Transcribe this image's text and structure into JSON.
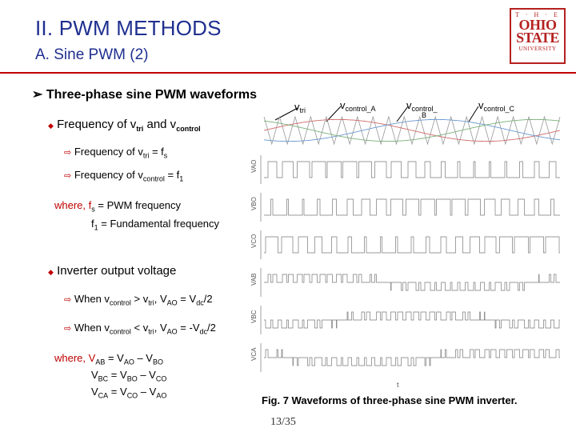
{
  "header": {
    "title": "II. PWM METHODS",
    "subtitle": "A. Sine PWM (2)"
  },
  "logo": {
    "line1": "T · H · E",
    "line2": "OHIO",
    "line3": "STATE",
    "line4": "UNIVERSITY"
  },
  "content": {
    "heading": "Three-phase sine PWM waveforms",
    "freq_heading": {
      "pre": "Frequency of v",
      "sub1": "tri",
      "mid": " and v",
      "sub2": "control"
    },
    "freq_tri": {
      "pre": "Frequency of v",
      "sub": "tri",
      "post": " = f",
      "sub2": "s"
    },
    "freq_control": {
      "pre": "Frequency of v",
      "sub": "control",
      "post": " = f",
      "sub2": "1"
    },
    "where1": {
      "pre": "where, f",
      "sub": "s",
      "post": " = PWM frequency"
    },
    "where2": {
      "pre": "f",
      "sub": "1",
      "post": " = Fundamental frequency"
    },
    "inverter_heading": "Inverter output voltage",
    "when1": {
      "a": "When v",
      "as": "control",
      "b": " > v",
      "bs": "tri",
      "c": ", V",
      "cs": "AO",
      "d": " = V",
      "ds": "dc",
      "e": "/2"
    },
    "when2": {
      "a": "When v",
      "as": "control",
      "b": " < v",
      "bs": "tri",
      "c": ", V",
      "cs": "AO",
      "d": " = -V",
      "ds": "dc",
      "e": "/2"
    },
    "eq1": {
      "a": "where, V",
      "as": "AB",
      "b": " = V",
      "bs": "AO",
      "c": " – V",
      "cs": "BO"
    },
    "eq2": {
      "a": "V",
      "as": "BC",
      "b": " = V",
      "bs": "BO",
      "c": " – V",
      "cs": "CO"
    },
    "eq3": {
      "a": "V",
      "as": "CA",
      "b": " = V",
      "bs": "CO",
      "c": " – V",
      "cs": "AO"
    }
  },
  "figure": {
    "labels": {
      "vtri": {
        "v": "v",
        "sub": "tri"
      },
      "vca": {
        "v": "v",
        "sub": "control_A"
      },
      "vcb": {
        "v": "v",
        "sub": "control_",
        "under": "B"
      },
      "vcc": {
        "v": "v",
        "sub": "control_C"
      }
    },
    "traces": [
      "VAO",
      "VBO",
      "VCO",
      "VAB",
      "VBC",
      "VCA"
    ],
    "time_label": "t",
    "caption": "Fig. 7 Waveforms of three-phase sine PWM inverter."
  },
  "page_number": "13/35",
  "colors": {
    "title": "#1f2f8f",
    "accent": "#c00000",
    "logo": "#b5211f"
  }
}
